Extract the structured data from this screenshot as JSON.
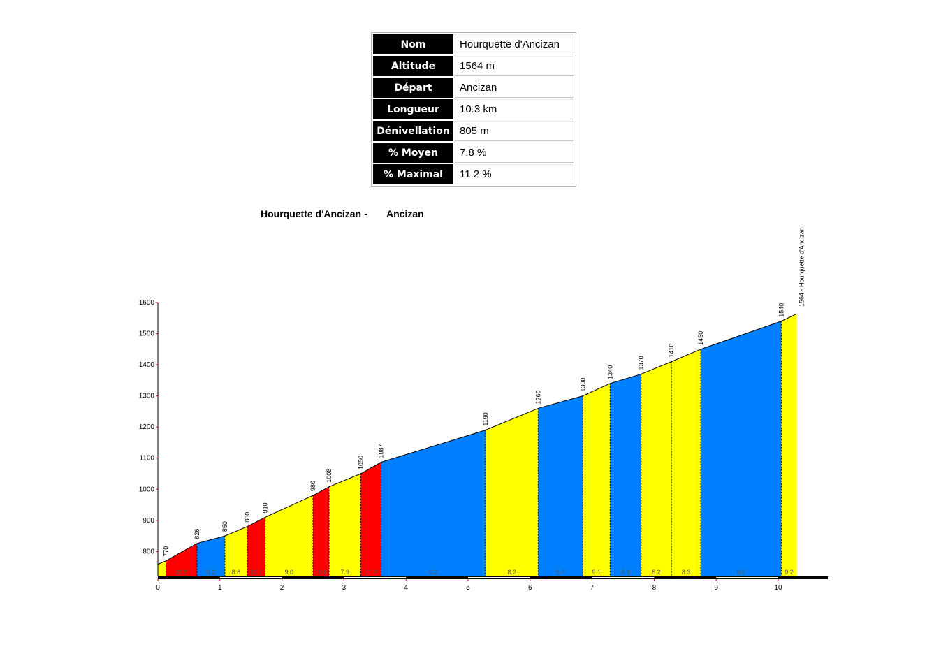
{
  "info": [
    {
      "label": "Nom",
      "value": "Hourquette d'Ancizan"
    },
    {
      "label": "Altitude",
      "value": "1564 m"
    },
    {
      "label": "Départ",
      "value": "Ancizan"
    },
    {
      "label": "Longueur",
      "value": "10.3 km"
    },
    {
      "label": "Dénivellation",
      "value": "805 m"
    },
    {
      "label": "% Moyen",
      "value": "7.8 %"
    },
    {
      "label": "% Maximal",
      "value": "11.2 %"
    }
  ],
  "colors": {
    "red": "#ff0000",
    "yellow": "#ffff00",
    "blue": "#0080ff",
    "axis_tick": "#c00000"
  },
  "chart_data": {
    "type": "area",
    "title": [
      "Hourquette d'Ancizan -",
      "Ancizan"
    ],
    "xlabel": "",
    "ylabel": "",
    "xlim": [
      0,
      10.8
    ],
    "ylim": [
      720,
      1600
    ],
    "y_ticks": [
      800,
      900,
      1000,
      1100,
      1200,
      1300,
      1400,
      1500,
      1600
    ],
    "x_ticks": [
      0,
      1,
      2,
      3,
      4,
      5,
      6,
      7,
      8,
      9,
      10
    ],
    "summit_label": "1564 - Hourquette d'Ancizan",
    "points": [
      {
        "x": 0,
        "alt": 759,
        "label": ""
      },
      {
        "x": 0.13,
        "alt": 770,
        "label": "770"
      },
      {
        "x": 0.63,
        "alt": 826,
        "label": "826"
      },
      {
        "x": 1.08,
        "alt": 850,
        "label": "850"
      },
      {
        "x": 1.44,
        "alt": 880,
        "label": "880"
      },
      {
        "x": 1.73,
        "alt": 910,
        "label": "910"
      },
      {
        "x": 2.5,
        "alt": 980,
        "label": "980"
      },
      {
        "x": 2.76,
        "alt": 1008,
        "label": "1008"
      },
      {
        "x": 3.27,
        "alt": 1050,
        "label": "1050"
      },
      {
        "x": 3.6,
        "alt": 1087,
        "label": "1087"
      },
      {
        "x": 5.28,
        "alt": 1190,
        "label": "1190"
      },
      {
        "x": 6.13,
        "alt": 1260,
        "label": "1260"
      },
      {
        "x": 6.85,
        "alt": 1300,
        "label": "1300"
      },
      {
        "x": 7.29,
        "alt": 1340,
        "label": "1340"
      },
      {
        "x": 7.79,
        "alt": 1370,
        "label": "1370"
      },
      {
        "x": 8.28,
        "alt": 1410,
        "label": "1410"
      },
      {
        "x": 8.75,
        "alt": 1450,
        "label": "1450"
      },
      {
        "x": 10.05,
        "alt": 1540,
        "label": "1540"
      },
      {
        "x": 10.3,
        "alt": 1564,
        "label": ""
      }
    ],
    "segments": [
      {
        "pct": "",
        "color": "yellow"
      },
      {
        "pct": "11.2",
        "color": "red"
      },
      {
        "pct": "5.2",
        "color": "blue"
      },
      {
        "pct": "8.6",
        "color": "yellow"
      },
      {
        "pct": "10.7",
        "color": "red"
      },
      {
        "pct": "9.0",
        "color": "yellow"
      },
      {
        "pct": "10.6",
        "color": "red"
      },
      {
        "pct": "7.9",
        "color": "yellow"
      },
      {
        "pct": "11.2",
        "color": "red"
      },
      {
        "pct": "6.2",
        "color": "blue"
      },
      {
        "pct": "8.2",
        "color": "yellow"
      },
      {
        "pct": "5.7",
        "color": "blue"
      },
      {
        "pct": "9.1",
        "color": "yellow"
      },
      {
        "pct": "5.9",
        "color": "blue"
      },
      {
        "pct": "8.2",
        "color": "yellow"
      },
      {
        "pct": "8.3",
        "color": "yellow"
      },
      {
        "pct": "6.9",
        "color": "blue"
      },
      {
        "pct": "9.2",
        "color": "yellow"
      }
    ]
  }
}
